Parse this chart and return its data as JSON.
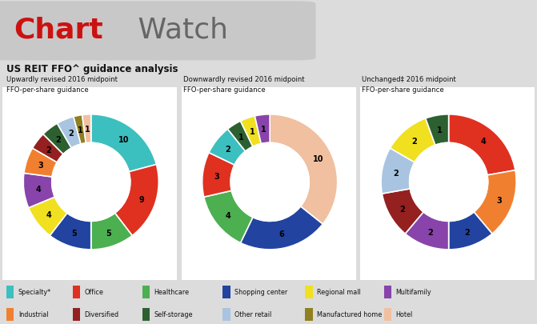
{
  "title_red": "Chart",
  "title_gray": " Watch",
  "subtitle": "US REIT FFO^ guidance analysis",
  "chart_titles": [
    "Upwardly revised 2016 midpoint\nFFO-per-share guidance",
    "Downwardly revised 2016 midpoint\nFFO-per-share guidance",
    "Unchanged‡ 2016 midpoint\nFFO-per-share guidance"
  ],
  "categories": [
    "Specialty*",
    "Office",
    "Healthcare",
    "Shopping center",
    "Regional mall",
    "Multifamily",
    "Industrial",
    "Diversified",
    "Self-storage",
    "Other retail",
    "Manufactured home",
    "Hotel"
  ],
  "colors": [
    "#3CBFBF",
    "#E03020",
    "#4CAF50",
    "#2244A0",
    "#F0E020",
    "#8844AA",
    "#F08030",
    "#952020",
    "#2D6030",
    "#A8C4E0",
    "#908020",
    "#F0C0A0"
  ],
  "chart1_values": [
    10,
    9,
    5,
    5,
    4,
    4,
    3,
    2,
    2,
    2,
    1,
    1
  ],
  "chart1_order": [
    0,
    1,
    2,
    3,
    4,
    5,
    6,
    7,
    8,
    9,
    10,
    11
  ],
  "chart2_values": [
    10,
    6,
    4,
    3,
    2,
    1,
    1,
    1
  ],
  "chart2_order": [
    11,
    3,
    2,
    1,
    0,
    8,
    4,
    5
  ],
  "chart3_values": [
    4,
    3,
    2,
    2,
    2,
    2,
    2,
    1
  ],
  "chart3_order": [
    1,
    6,
    3,
    5,
    7,
    9,
    4,
    8
  ],
  "bg_color": "#DCDCDC",
  "title_bg": "#C8C8C8",
  "panel_bg": "#E8E8E8",
  "donut_white": "#FFFFFF"
}
